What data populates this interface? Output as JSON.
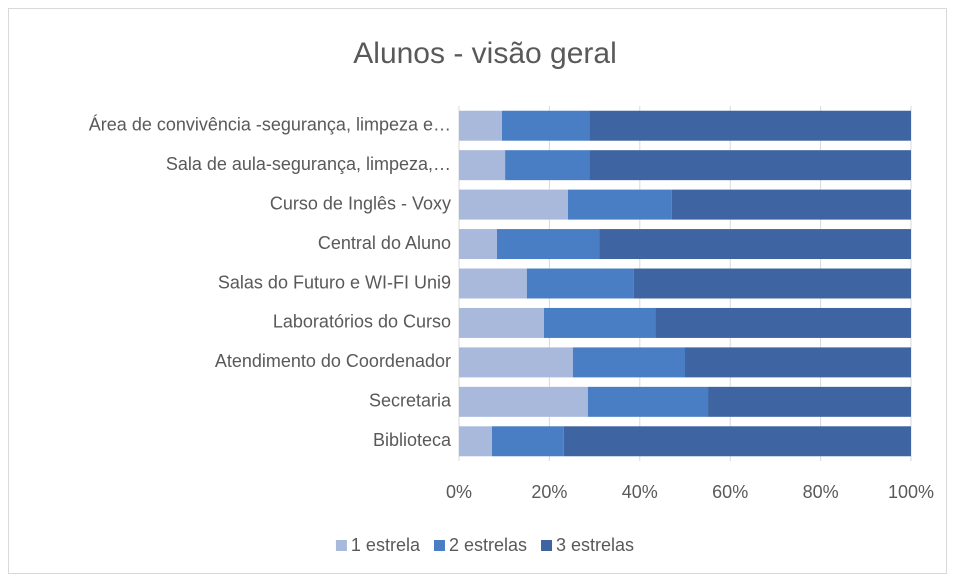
{
  "chart_data": {
    "type": "bar",
    "orientation": "horizontal",
    "stacked": "percent",
    "title": "Alunos - visão geral",
    "categories": [
      "Área de convivência -segurança, limpeza e…",
      "Sala de aula-segurança, limpeza,…",
      "Curso de Inglês - Voxy",
      "Central do Aluno",
      "Salas do Futuro e WI-FI Uni9",
      "Laboratórios do Curso",
      "Atendimento do Coordenador",
      "Secretaria",
      "Biblioteca"
    ],
    "series": [
      {
        "name": "1 estrela",
        "color": "#a9b9db",
        "values": [
          9.5,
          10.2,
          24.1,
          8.4,
          15.0,
          18.8,
          25.2,
          28.5,
          7.3
        ]
      },
      {
        "name": "2 estrelas",
        "color": "#4a7ec4",
        "values": [
          19.3,
          18.6,
          23.0,
          22.6,
          23.7,
          24.6,
          24.8,
          26.6,
          15.9
        ]
      },
      {
        "name": "3 estrelas",
        "color": "#3e65a1",
        "values": [
          71.2,
          71.2,
          52.9,
          69.0,
          61.3,
          56.6,
          50.0,
          44.9,
          76.8
        ]
      }
    ],
    "xlim": [
      0,
      100
    ],
    "xticks": [
      {
        "value": 0,
        "label": "0%"
      },
      {
        "value": 20,
        "label": "20%"
      },
      {
        "value": 40,
        "label": "40%"
      },
      {
        "value": 60,
        "label": "60%"
      },
      {
        "value": 80,
        "label": "80%"
      },
      {
        "value": 100,
        "label": "100%"
      }
    ],
    "grid": true,
    "legend": "bottom"
  }
}
